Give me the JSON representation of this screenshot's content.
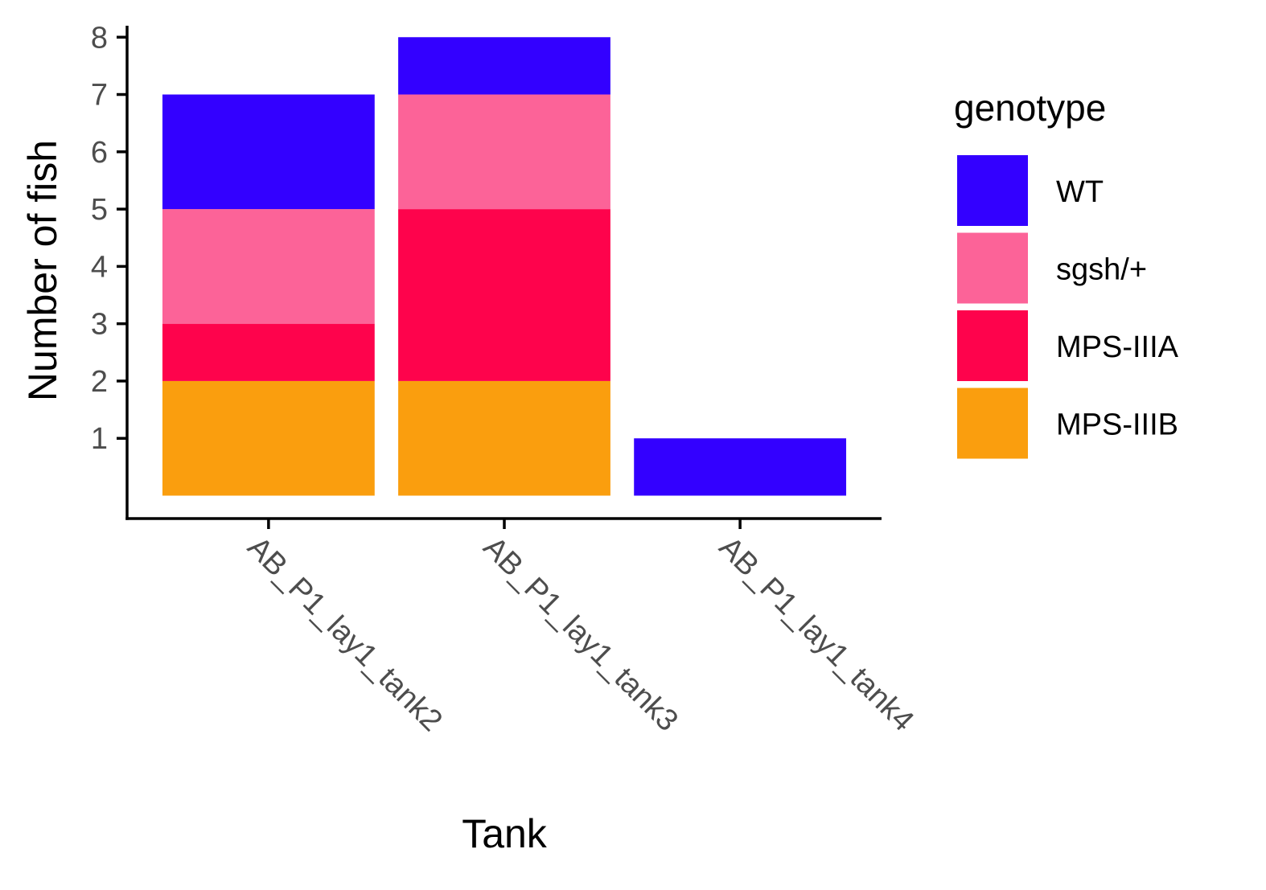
{
  "chart_data": {
    "type": "bar",
    "stacked": true,
    "title": "",
    "xlabel": "Tank",
    "ylabel": "Number of fish",
    "categories": [
      "AB_P1_lay1_tank2",
      "AB_P1_lay1_tank3",
      "AB_P1_lay1_tank4"
    ],
    "series": [
      {
        "name": "MPS-IIIB",
        "color": "#FA9E0E",
        "values": [
          2,
          2,
          0
        ]
      },
      {
        "name": "MPS-IIIA",
        "color": "#FE034C",
        "values": [
          1,
          3,
          0
        ]
      },
      {
        "name": "sgsh/+",
        "color": "#FC6398",
        "values": [
          2,
          2,
          0
        ]
      },
      {
        "name": "WT",
        "color": "#3300FF",
        "values": [
          2,
          1,
          1
        ]
      }
    ],
    "ylim": [
      -0.4,
      8.2
    ],
    "yticks": [
      1,
      2,
      3,
      4,
      5,
      6,
      7,
      8
    ],
    "grid": false,
    "legend": {
      "title": "genotype",
      "position": "right",
      "order": [
        "WT",
        "sgsh/+",
        "MPS-IIIA",
        "MPS-IIIB"
      ]
    }
  }
}
